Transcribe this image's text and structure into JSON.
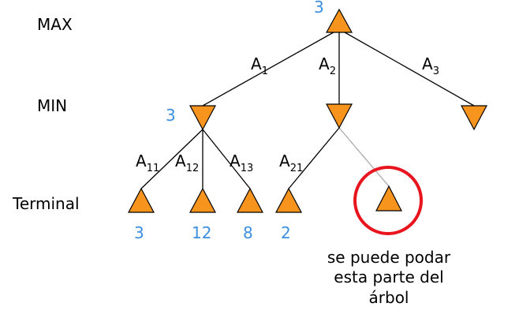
{
  "levels": {
    "max": "MAX",
    "min": "MIN",
    "terminal": "Terminal"
  },
  "edges": {
    "a1": {
      "base": "A",
      "sub": "1"
    },
    "a2": {
      "base": "A",
      "sub": "2"
    },
    "a3": {
      "base": "A",
      "sub": "3"
    },
    "a11": {
      "base": "A",
      "sub": "11"
    },
    "a12": {
      "base": "A",
      "sub": "12"
    },
    "a13": {
      "base": "A",
      "sub": "13"
    },
    "a21": {
      "base": "A",
      "sub": "21"
    }
  },
  "values": {
    "root": "3",
    "min_left": "3",
    "leaf1": "3",
    "leaf2": "12",
    "leaf3": "8",
    "leaf4": "2"
  },
  "note": {
    "line1": "se puede podar",
    "line2": "esta parte del",
    "line3": "árbol"
  },
  "colors": {
    "node_fill": "#F7941D",
    "node_stroke": "#000000",
    "value_text": "#3C8FE0",
    "pruned_edge": "#A8A8A8",
    "highlight_circle": "#E8141E"
  }
}
